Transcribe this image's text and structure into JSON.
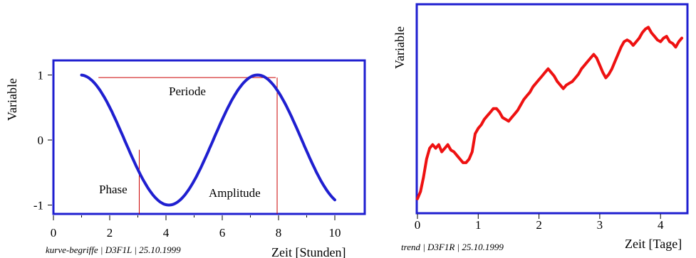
{
  "chart_data": [
    {
      "type": "line",
      "title": "",
      "xlabel": "Zeit [Stunden]",
      "ylabel": "Variable",
      "xlim": [
        0,
        11
      ],
      "ylim": [
        -1.2,
        1.05
      ],
      "x_ticks": [
        0,
        2,
        4,
        6,
        8,
        10
      ],
      "x_tick_labels": [
        "0",
        "2",
        "4",
        "6",
        "8",
        "10"
      ],
      "y_ticks": [
        -1,
        0,
        1
      ],
      "y_tick_labels": [
        "-1",
        "0",
        "1"
      ],
      "series": [
        {
          "color": "#1f1fd0",
          "function": "sin",
          "x_start": 1.0,
          "x_end": 10.0,
          "period": 6.3,
          "amplitude": 1.0,
          "phase": 0.0
        }
      ],
      "guides": {
        "color": "#cc0000",
        "period_y": 0.96,
        "period_x_start": 1.6,
        "period_x_end": 7.9,
        "phase_x": 3.05,
        "period_end_x": 7.95
      },
      "annotations": {
        "periode": "Periode",
        "phase": "Phase",
        "amplitude": "Amplitude"
      },
      "footer": "kurve-begriffe | D3F1L | 25.10.1999"
    },
    {
      "type": "line",
      "title": "",
      "xlabel": "Zeit [Tage]",
      "ylabel": "Variable",
      "xlim": [
        0,
        4.45
      ],
      "x_ticks": [
        0,
        1,
        2,
        3,
        4
      ],
      "x_tick_labels": [
        "0",
        "1",
        "2",
        "3",
        "4"
      ],
      "y_ticks": [],
      "series": [
        {
          "color": "#ee1111",
          "x": [
            0.0,
            0.05,
            0.1,
            0.15,
            0.2,
            0.25,
            0.3,
            0.35,
            0.4,
            0.45,
            0.5,
            0.55,
            0.6,
            0.65,
            0.7,
            0.75,
            0.8,
            0.85,
            0.9,
            0.95,
            1.0,
            1.05,
            1.1,
            1.15,
            1.2,
            1.25,
            1.3,
            1.35,
            1.4,
            1.45,
            1.5,
            1.55,
            1.6,
            1.65,
            1.7,
            1.75,
            1.8,
            1.85,
            1.9,
            1.95,
            2.0,
            2.05,
            2.1,
            2.15,
            2.2,
            2.25,
            2.3,
            2.35,
            2.4,
            2.45,
            2.5,
            2.55,
            2.6,
            2.65,
            2.7,
            2.75,
            2.8,
            2.85,
            2.9,
            2.95,
            3.0,
            3.05,
            3.1,
            3.15,
            3.2,
            3.25,
            3.3,
            3.35,
            3.4,
            3.45,
            3.5,
            3.55,
            3.6,
            3.65,
            3.7,
            3.75,
            3.8,
            3.85,
            3.9,
            3.95,
            4.0,
            4.05,
            4.1,
            4.15,
            4.2,
            4.25,
            4.3,
            4.35
          ],
          "y": [
            0.08,
            0.12,
            0.2,
            0.3,
            0.36,
            0.38,
            0.36,
            0.38,
            0.34,
            0.36,
            0.38,
            0.35,
            0.34,
            0.32,
            0.3,
            0.28,
            0.28,
            0.3,
            0.34,
            0.44,
            0.47,
            0.49,
            0.52,
            0.54,
            0.56,
            0.58,
            0.58,
            0.56,
            0.53,
            0.52,
            0.51,
            0.53,
            0.55,
            0.57,
            0.6,
            0.63,
            0.65,
            0.67,
            0.7,
            0.72,
            0.74,
            0.76,
            0.78,
            0.8,
            0.78,
            0.76,
            0.73,
            0.71,
            0.69,
            0.71,
            0.72,
            0.73,
            0.75,
            0.77,
            0.8,
            0.82,
            0.84,
            0.86,
            0.88,
            0.86,
            0.82,
            0.78,
            0.75,
            0.77,
            0.8,
            0.84,
            0.88,
            0.92,
            0.95,
            0.96,
            0.95,
            0.93,
            0.95,
            0.97,
            1.0,
            1.02,
            1.03,
            1.0,
            0.98,
            0.96,
            0.95,
            0.97,
            0.98,
            0.95,
            0.94,
            0.92,
            0.95,
            0.97
          ]
        }
      ],
      "footer": "trend | D3F1R | 25.10.1999"
    }
  ]
}
